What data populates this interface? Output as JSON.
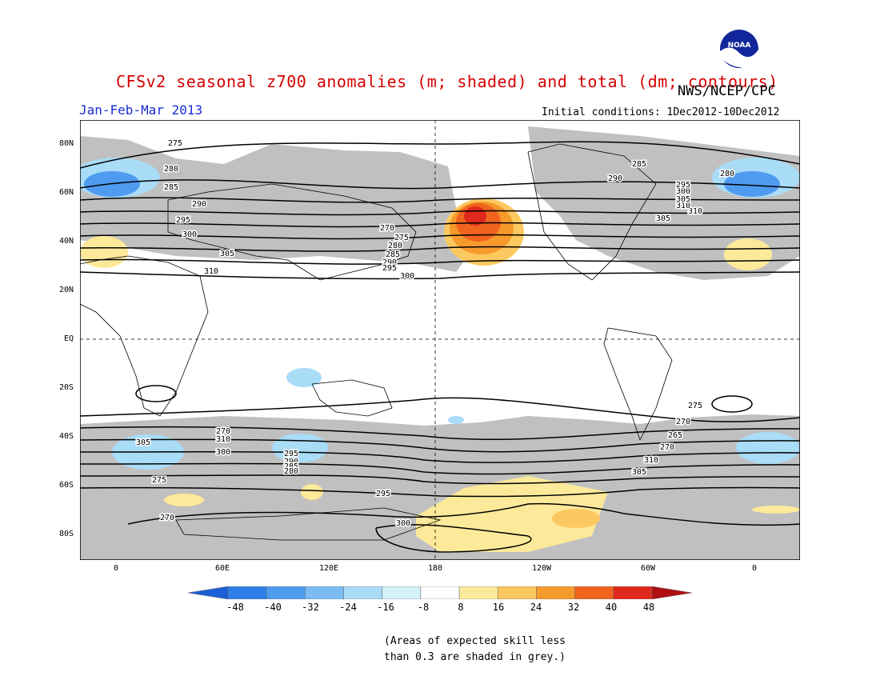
{
  "header": {
    "title": "CFSv2 seasonal z700 anomalies (m; shaded) and total (dm; contours)",
    "agency": "NWS/NCEP/CPC",
    "season": "Jan-Feb-Mar 2013",
    "initial_conditions": "Initial conditions: 1Dec2012-10Dec2012"
  },
  "logo": {
    "text": "NOAA",
    "icon": "noaa-logo-icon"
  },
  "axes": {
    "lat_labels": [
      "80N",
      "60N",
      "40N",
      "20N",
      "EQ",
      "20S",
      "40S",
      "60S",
      "80S"
    ],
    "lon_labels": [
      "0",
      "60E",
      "120E",
      "180",
      "120W",
      "60W",
      "0"
    ]
  },
  "contour_labels": [
    "275",
    "280",
    "285",
    "290",
    "295",
    "300",
    "305",
    "310",
    "270",
    "275",
    "280",
    "285",
    "290",
    "295",
    "300",
    "305",
    "310",
    "310",
    "305",
    "300",
    "295",
    "290",
    "285",
    "280",
    "275",
    "270",
    "265",
    "270",
    "310",
    "305",
    "300",
    "295",
    "270",
    "310",
    "305",
    "300",
    "295",
    "290",
    "285",
    "280",
    "275",
    "270"
  ],
  "colorbar": {
    "ticks": [
      "-48",
      "-40",
      "-32",
      "-24",
      "-16",
      "-8",
      "8",
      "16",
      "24",
      "32",
      "40",
      "48"
    ],
    "colors": [
      "#1c5fd6",
      "#2f7fe8",
      "#4f9bf0",
      "#7cbcf5",
      "#a8dcf7",
      "#d2f2f8",
      "#ffffff",
      "#fde99a",
      "#fcc860",
      "#f79a2c",
      "#f0641e",
      "#e0281c",
      "#b00f12"
    ]
  },
  "footnote": {
    "line1": "(Areas of expected skill less",
    "line2": "than 0.3 are shaded in grey.)"
  },
  "colors": {
    "title": "#d40000",
    "season": "#1a2bd6",
    "grey_skill": "#c0c0c0"
  }
}
